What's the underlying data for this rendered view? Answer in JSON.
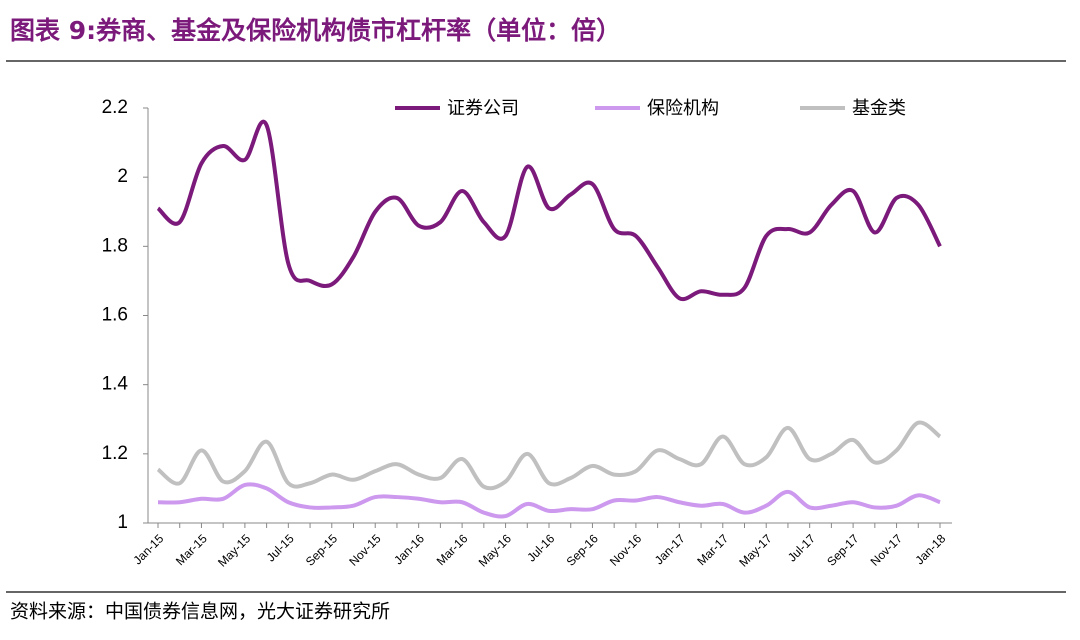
{
  "chart_data": {
    "type": "line",
    "title": "图表 9:券商、基金及保险机构债市杠杆率（单位：倍）",
    "source": "资料来源：中国债券信息网，光大证券研究所",
    "categories": [
      "Jan-15",
      null,
      "Mar-15",
      null,
      "May-15",
      null,
      "Jul-15",
      null,
      "Sep-15",
      null,
      "Nov-15",
      null,
      "Jan-16",
      null,
      "Mar-16",
      null,
      "May-16",
      null,
      "Jul-16",
      null,
      "Sep-16",
      null,
      "Nov-16",
      null,
      "Jan-17",
      null,
      "Mar-17",
      null,
      "May-17",
      null,
      "Jul-17",
      null,
      "Sep-17",
      null,
      "Nov-17",
      null,
      "Jan-18"
    ],
    "series": [
      {
        "name": "证券公司",
        "color": "#7b1a7b",
        "values": [
          1.91,
          1.87,
          2.04,
          2.09,
          2.05,
          2.15,
          1.75,
          1.7,
          1.69,
          1.77,
          1.9,
          1.94,
          1.86,
          1.87,
          1.96,
          1.87,
          1.83,
          2.03,
          1.91,
          1.95,
          1.98,
          1.85,
          1.83,
          1.74,
          1.65,
          1.67,
          1.66,
          1.68,
          1.83,
          1.85,
          1.84,
          1.92,
          1.96,
          1.84,
          1.94,
          1.92,
          1.8
        ]
      },
      {
        "name": "保险机构",
        "color": "#cc99ee",
        "values": [
          1.06,
          1.06,
          1.07,
          1.07,
          1.11,
          1.1,
          1.06,
          1.045,
          1.045,
          1.05,
          1.075,
          1.075,
          1.07,
          1.06,
          1.06,
          1.03,
          1.02,
          1.055,
          1.035,
          1.04,
          1.04,
          1.065,
          1.065,
          1.075,
          1.06,
          1.05,
          1.055,
          1.03,
          1.05,
          1.09,
          1.045,
          1.05,
          1.06,
          1.045,
          1.05,
          1.08,
          1.06
        ]
      },
      {
        "name": "基金类",
        "color": "#c0c0c0",
        "values": [
          1.155,
          1.115,
          1.21,
          1.12,
          1.15,
          1.235,
          1.115,
          1.115,
          1.14,
          1.125,
          1.15,
          1.17,
          1.14,
          1.13,
          1.185,
          1.105,
          1.12,
          1.2,
          1.115,
          1.13,
          1.165,
          1.14,
          1.15,
          1.21,
          1.185,
          1.17,
          1.25,
          1.17,
          1.19,
          1.275,
          1.185,
          1.2,
          1.24,
          1.175,
          1.21,
          1.29,
          1.25
        ]
      }
    ],
    "ylim": [
      1,
      2.2
    ],
    "yticks": [
      1,
      1.2,
      1.4,
      1.6,
      1.8,
      2,
      2.2
    ],
    "grid": false,
    "legend": "top"
  }
}
